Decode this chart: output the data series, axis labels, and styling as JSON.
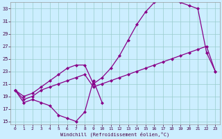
{
  "bg_color": "#cceeff",
  "line_color": "#880088",
  "xlim": [
    -0.5,
    23.5
  ],
  "ylim": [
    14.5,
    34.0
  ],
  "xticks": [
    0,
    1,
    2,
    3,
    4,
    5,
    6,
    7,
    8,
    9,
    10,
    11,
    12,
    13,
    14,
    15,
    16,
    17,
    18,
    19,
    20,
    21,
    22,
    23
  ],
  "yticks": [
    15,
    17,
    19,
    21,
    23,
    25,
    27,
    29,
    31,
    33
  ],
  "xlabel": "Windchill (Refroidissement éolien,°C)",
  "grid_color": "#99cccc",
  "marker": "D",
  "markersize": 2.0,
  "linewidth": 0.9,
  "line1_x": [
    0,
    1,
    2,
    3,
    4,
    5,
    6,
    7,
    8,
    9,
    10
  ],
  "line1_y": [
    20.0,
    18.0,
    18.5,
    18.0,
    17.5,
    16.0,
    15.5,
    15.0,
    16.5,
    21.5,
    18.0
  ],
  "line2_x": [
    0,
    1,
    2,
    3,
    4,
    5,
    6,
    7,
    8,
    9,
    10,
    11,
    12,
    13,
    14,
    15,
    16,
    17,
    18,
    19,
    20,
    21,
    22,
    23
  ],
  "line2_y": [
    20.0,
    19.0,
    19.5,
    20.5,
    21.5,
    22.5,
    23.5,
    24.0,
    24.0,
    21.0,
    22.0,
    23.5,
    25.5,
    28.0,
    30.5,
    32.5,
    34.0,
    34.5,
    34.5,
    34.0,
    33.5,
    33.0,
    26.0,
    23.0
  ],
  "line3_x": [
    0,
    1,
    2,
    3,
    4,
    5,
    6,
    7,
    8,
    9,
    10,
    11,
    12,
    13,
    14,
    15,
    16,
    17,
    18,
    19,
    20,
    21,
    22,
    23
  ],
  "line3_y": [
    20.0,
    18.5,
    19.0,
    20.0,
    20.5,
    21.0,
    21.5,
    22.0,
    22.5,
    20.5,
    21.0,
    21.5,
    22.0,
    22.5,
    23.0,
    23.5,
    24.0,
    24.5,
    25.0,
    25.5,
    26.0,
    26.5,
    27.0,
    23.0
  ]
}
